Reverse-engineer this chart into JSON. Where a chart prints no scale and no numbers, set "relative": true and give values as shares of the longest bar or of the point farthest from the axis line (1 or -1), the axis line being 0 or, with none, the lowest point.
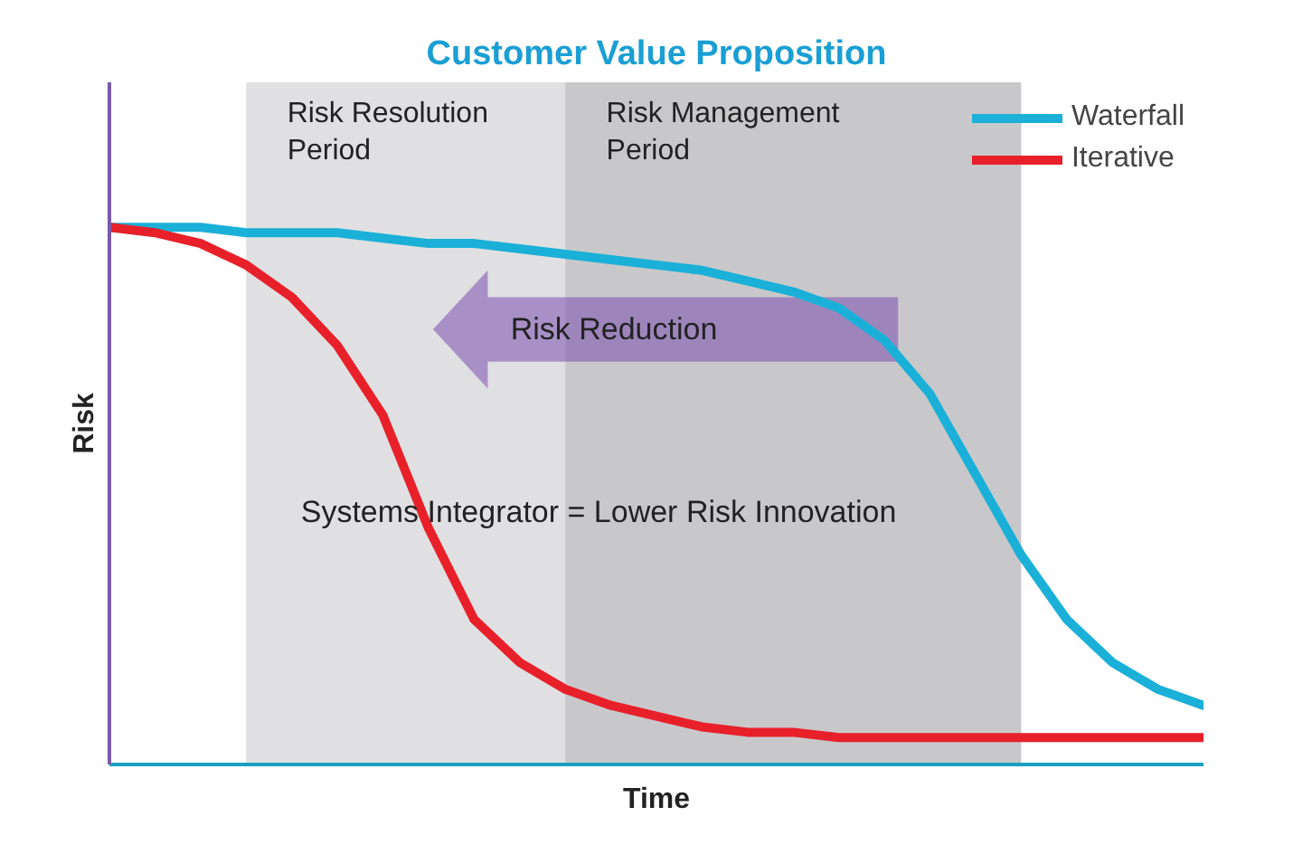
{
  "chart_data": {
    "type": "line",
    "title": "Customer Value Proposition",
    "xlabel": "Time",
    "ylabel": "Risk",
    "relative": true,
    "legend": "top right",
    "grid": false,
    "categories": [
      null,
      null,
      null,
      null,
      null,
      null,
      null,
      null,
      null,
      null,
      null,
      null,
      null,
      null,
      null,
      null,
      null,
      null,
      null,
      null,
      null,
      null,
      null,
      null,
      null
    ],
    "series": [
      {
        "name": "Waterfall",
        "color": "#1ab0d8",
        "values": [
          1.0,
          1.0,
          1.0,
          0.99,
          0.99,
          0.99,
          0.98,
          0.97,
          0.97,
          0.96,
          0.95,
          0.94,
          0.93,
          0.92,
          0.9,
          0.88,
          0.85,
          0.79,
          0.69,
          0.54,
          0.39,
          0.27,
          0.19,
          0.14,
          0.11
        ]
      },
      {
        "name": "Iterative",
        "color": "#e8202a",
        "values": [
          1.0,
          0.99,
          0.97,
          0.93,
          0.87,
          0.78,
          0.65,
          0.44,
          0.27,
          0.19,
          0.14,
          0.11,
          0.09,
          0.07,
          0.06,
          0.06,
          0.05,
          0.05,
          0.05,
          0.05,
          0.05,
          0.05,
          0.05,
          0.05,
          0.05
        ]
      }
    ],
    "annotations": [
      "Risk Resolution\nPeriod",
      "Risk Management\nPeriod",
      "Risk Reduction",
      "Systems Integrator = Lower Risk Innovation"
    ]
  }
}
